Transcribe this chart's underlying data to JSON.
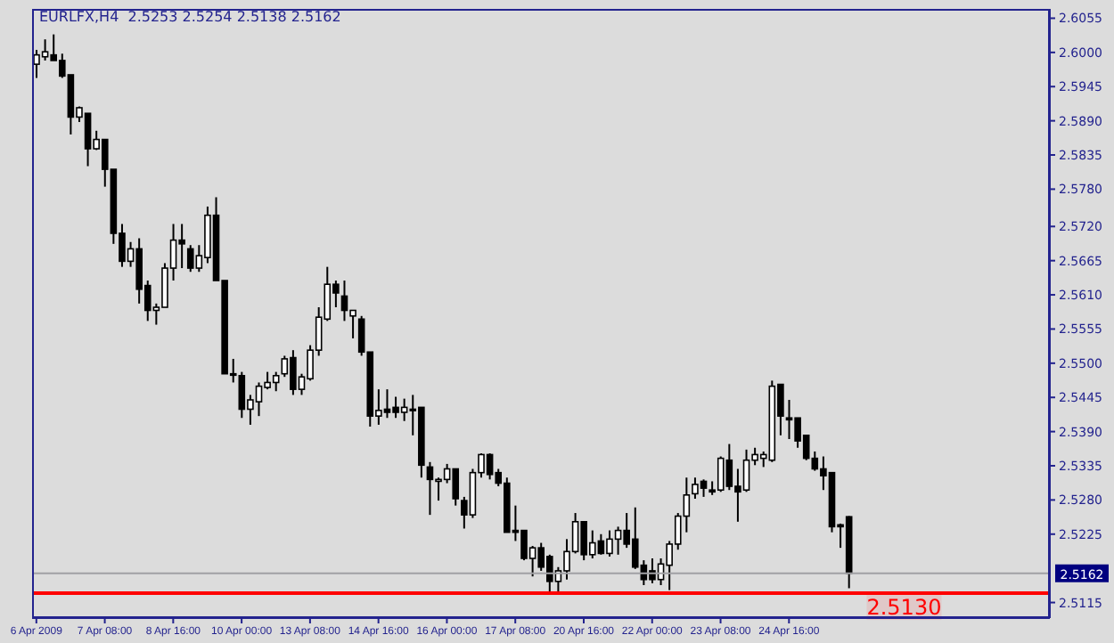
{
  "chart_data": {
    "type": "candlestick",
    "title": "EURLFX,H4  2.5253 2.5254 2.5138 2.5162",
    "categories": [
      "6 Apr 2009",
      null,
      null,
      null,
      null,
      null,
      null,
      null,
      "7 Apr 08:00",
      null,
      null,
      null,
      null,
      null,
      null,
      null,
      "8 Apr 16:00",
      null,
      null,
      null,
      null,
      null,
      null,
      null,
      "10 Apr 00:00",
      null,
      null,
      null,
      null,
      null,
      null,
      null,
      "13 Apr 08:00",
      null,
      null,
      null,
      null,
      null,
      null,
      null,
      "14 Apr 16:00",
      null,
      null,
      null,
      null,
      null,
      null,
      null,
      "16 Apr 00:00",
      null,
      null,
      null,
      null,
      null,
      null,
      null,
      "17 Apr 08:00",
      null,
      null,
      null,
      null,
      null,
      null,
      null,
      "20 Apr 16:00",
      null,
      null,
      null,
      null,
      null,
      null,
      null,
      "22 Apr 00:00",
      null,
      null,
      null,
      null,
      null,
      null,
      null,
      "23 Apr 08:00",
      null,
      null,
      null,
      null,
      null,
      null,
      null,
      "24 Apr 16:00",
      null,
      null,
      null,
      null,
      null,
      null,
      null,
      null,
      null,
      null,
      null,
      null,
      null,
      null,
      null,
      null,
      null,
      null,
      null,
      null,
      null,
      null,
      null,
      null,
      null,
      null,
      null,
      null,
      null,
      null
    ],
    "ohlc": [
      [
        2.5981,
        2.6004,
        2.5959,
        2.5996
      ],
      [
        2.5993,
        2.6021,
        2.5987,
        2.6001
      ],
      [
        2.5996,
        2.6029,
        2.5987,
        2.5987
      ],
      [
        2.5987,
        2.5998,
        2.5959,
        2.5962
      ],
      [
        2.5964,
        2.5964,
        2.5868,
        2.5896
      ],
      [
        2.5896,
        2.5913,
        2.5888,
        2.5911
      ],
      [
        2.5902,
        2.5902,
        2.5817,
        2.5845
      ],
      [
        2.5845,
        2.5874,
        2.5843,
        2.586
      ],
      [
        2.586,
        2.586,
        2.5784,
        2.5812
      ],
      [
        2.5812,
        2.5812,
        2.5692,
        2.5709
      ],
      [
        2.5709,
        2.5724,
        2.5655,
        2.5664
      ],
      [
        2.5664,
        2.5695,
        2.5655,
        2.5684
      ],
      [
        2.5684,
        2.5701,
        2.5596,
        2.5619
      ],
      [
        2.5625,
        2.5633,
        2.5568,
        2.5585
      ],
      [
        2.5585,
        2.5596,
        2.5562,
        2.559
      ],
      [
        2.559,
        2.5661,
        2.559,
        2.5653
      ],
      [
        2.5653,
        2.5724,
        2.5633,
        2.5698
      ],
      [
        2.5698,
        2.5724,
        2.5653,
        2.5692
      ],
      [
        2.5684,
        2.569,
        2.5647,
        2.5653
      ],
      [
        2.5653,
        2.569,
        2.5647,
        2.5673
      ],
      [
        2.567,
        2.5752,
        2.5661,
        2.5738
      ],
      [
        2.5738,
        2.5767,
        2.5633,
        2.5633
      ],
      [
        2.5633,
        2.5633,
        2.5483,
        2.5483
      ],
      [
        2.5483,
        2.5507,
        2.5469,
        2.5483
      ],
      [
        2.548,
        2.5486,
        2.5412,
        2.5426
      ],
      [
        2.5426,
        2.5449,
        2.5401,
        2.5441
      ],
      [
        2.5438,
        2.5469,
        2.5415,
        2.5463
      ],
      [
        2.5461,
        2.5486,
        2.5458,
        2.5469
      ],
      [
        2.5469,
        2.5486,
        2.5455,
        2.548
      ],
      [
        2.5483,
        2.5512,
        2.5478,
        2.5507
      ],
      [
        2.5509,
        2.5521,
        2.5449,
        2.5458
      ],
      [
        2.5458,
        2.5483,
        2.5449,
        2.5478
      ],
      [
        2.5475,
        2.5529,
        2.5472,
        2.5521
      ],
      [
        2.5521,
        2.559,
        2.5512,
        2.5574
      ],
      [
        2.5571,
        2.5655,
        2.5568,
        2.5627
      ],
      [
        2.5627,
        2.5633,
        2.559,
        2.5613
      ],
      [
        2.5608,
        2.5633,
        2.5568,
        2.5585
      ],
      [
        2.5576,
        2.5585,
        2.554,
        2.5585
      ],
      [
        2.5571,
        2.5576,
        2.5512,
        2.5518
      ],
      [
        2.5518,
        2.5518,
        2.5398,
        2.5415
      ],
      [
        2.5415,
        2.5458,
        2.5401,
        2.5424
      ],
      [
        2.5426,
        2.5458,
        2.5412,
        2.5421
      ],
      [
        2.5429,
        2.5446,
        2.5412,
        2.5421
      ],
      [
        2.5421,
        2.5443,
        2.5407,
        2.5429
      ],
      [
        2.5426,
        2.5449,
        2.5384,
        2.5426
      ],
      [
        2.5429,
        2.5429,
        2.5316,
        2.5336
      ],
      [
        2.5333,
        2.5341,
        2.5256,
        2.5313
      ],
      [
        2.531,
        2.5316,
        2.5279,
        2.5313
      ],
      [
        2.5313,
        2.5338,
        2.5307,
        2.533
      ],
      [
        2.533,
        2.533,
        2.5271,
        2.5282
      ],
      [
        2.5279,
        2.5285,
        2.5234,
        2.5256
      ],
      [
        2.5256,
        2.533,
        2.5251,
        2.5324
      ],
      [
        2.5324,
        2.5355,
        2.5316,
        2.5353
      ],
      [
        2.5353,
        2.5355,
        2.5313,
        2.5321
      ],
      [
        2.5324,
        2.533,
        2.5302,
        2.5307
      ],
      [
        2.5307,
        2.5316,
        2.5228,
        2.5228
      ],
      [
        2.5231,
        2.5271,
        2.5214,
        2.5228
      ],
      [
        2.5231,
        2.5231,
        2.5183,
        2.5186
      ],
      [
        2.5186,
        2.5206,
        2.5157,
        2.5203
      ],
      [
        2.5203,
        2.5211,
        2.5166,
        2.5172
      ],
      [
        2.5189,
        2.5192,
        2.513,
        2.5149
      ],
      [
        2.5149,
        2.5172,
        2.513,
        2.5166
      ],
      [
        2.5166,
        2.5217,
        2.5152,
        2.5197
      ],
      [
        2.5197,
        2.5259,
        2.5194,
        2.5245
      ],
      [
        2.5245,
        2.5245,
        2.5183,
        2.5192
      ],
      [
        2.5192,
        2.5231,
        2.5186,
        2.5211
      ],
      [
        2.5214,
        2.5225,
        2.5192,
        2.5194
      ],
      [
        2.5194,
        2.5231,
        2.5189,
        2.5217
      ],
      [
        2.5217,
        2.5237,
        2.5192,
        2.5231
      ],
      [
        2.5231,
        2.5259,
        2.5203,
        2.5209
      ],
      [
        2.5217,
        2.5268,
        2.5169,
        2.5172
      ],
      [
        2.5175,
        2.5183,
        2.5143,
        2.5152
      ],
      [
        2.5166,
        2.5186,
        2.5146,
        2.5152
      ],
      [
        2.5152,
        2.5186,
        2.5143,
        2.5177
      ],
      [
        2.5175,
        2.5214,
        2.5135,
        2.5209
      ],
      [
        2.5209,
        2.5259,
        2.52,
        2.5254
      ],
      [
        2.5254,
        2.5316,
        2.5228,
        2.5288
      ],
      [
        2.529,
        2.5316,
        2.5282,
        2.5305
      ],
      [
        2.531,
        2.5313,
        2.5285,
        2.5299
      ],
      [
        2.5296,
        2.531,
        2.5288,
        2.5293
      ],
      [
        2.5296,
        2.535,
        2.5293,
        2.5347
      ],
      [
        2.5344,
        2.537,
        2.5296,
        2.5302
      ],
      [
        2.5302,
        2.533,
        2.5245,
        2.5293
      ],
      [
        2.5296,
        2.5361,
        2.5293,
        2.5344
      ],
      [
        2.5344,
        2.5364,
        2.5336,
        2.5353
      ],
      [
        2.5347,
        2.5358,
        2.5333,
        2.5353
      ],
      [
        2.5344,
        2.5472,
        2.5341,
        2.5463
      ],
      [
        2.5466,
        2.5466,
        2.5384,
        2.5415
      ],
      [
        2.5412,
        2.5441,
        2.5378,
        2.5409
      ],
      [
        2.5412,
        2.5412,
        2.5364,
        2.5375
      ],
      [
        2.5384,
        2.5384,
        2.5344,
        2.5347
      ],
      [
        2.5347,
        2.5358,
        2.5327,
        2.533
      ],
      [
        2.533,
        2.535,
        2.5296,
        2.5319
      ],
      [
        2.5324,
        2.5324,
        2.5228,
        2.5237
      ],
      [
        2.524,
        2.5242,
        2.5203,
        2.5237
      ],
      [
        2.5253,
        2.5254,
        2.5138,
        2.5162
      ],
      null,
      null,
      null,
      null,
      null,
      null,
      null,
      null,
      null,
      null,
      null,
      null,
      null,
      null,
      null,
      null,
      null,
      null,
      null,
      null,
      null,
      null,
      null
    ],
    "ylim": [
      2.509,
      2.607
    ],
    "yticks": [
      {
        "value": 2.6055,
        "label": "2.6055"
      },
      {
        "value": 2.6,
        "label": "2.6000"
      },
      {
        "value": 2.5945,
        "label": "2.5945"
      },
      {
        "value": 2.589,
        "label": "2.5890"
      },
      {
        "value": 2.5835,
        "label": "2.5835"
      },
      {
        "value": 2.578,
        "label": "2.5780"
      },
      {
        "value": 2.572,
        "label": "2.5720"
      },
      {
        "value": 2.5665,
        "label": "2.5665"
      },
      {
        "value": 2.561,
        "label": "2.5610"
      },
      {
        "value": 2.5555,
        "label": "2.5555"
      },
      {
        "value": 2.55,
        "label": "2.5500"
      },
      {
        "value": 2.5445,
        "label": "2.5445"
      },
      {
        "value": 2.539,
        "label": "2.5390"
      },
      {
        "value": 2.5335,
        "label": "2.5335"
      },
      {
        "value": 2.528,
        "label": "2.5280"
      },
      {
        "value": 2.5225,
        "label": "2.5225"
      },
      {
        "value": 2.5115,
        "label": "2.5115"
      }
    ],
    "ref_lines": [
      {
        "axis": "y",
        "value": 2.513,
        "label": "2.5130",
        "color": "#ff0000"
      },
      {
        "axis": "y",
        "value": 2.5162,
        "label": "2.5162",
        "color": "#a0a0a4"
      }
    ],
    "grid": false
  }
}
